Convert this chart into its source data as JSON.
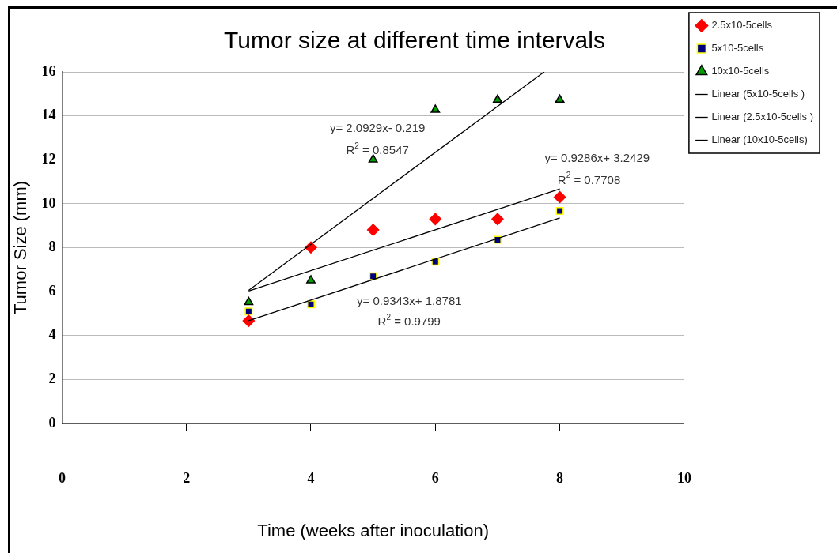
{
  "chart_data": {
    "type": "scatter",
    "title": "Tumor size at different time intervals",
    "xlabel": "Time (weeks after inoculation)",
    "ylabel": "Tumor Size (mm)",
    "xlim": [
      0,
      10
    ],
    "xticks": [
      0,
      2,
      4,
      6,
      8,
      10
    ],
    "ylim": [
      0,
      16
    ],
    "yticks": [
      0,
      2,
      4,
      6,
      8,
      10,
      12,
      14,
      16
    ],
    "grid": "y",
    "legend": "right",
    "series": [
      {
        "name": "2.5x10-5cells",
        "color": "#ff0000",
        "marker": "diamond",
        "x": [
          3,
          4,
          5,
          6,
          7,
          8
        ],
        "values": [
          4.67,
          8.01,
          8.81,
          9.3,
          9.3,
          10.3
        ]
      },
      {
        "name": "5x10-5cells",
        "color": "#000080",
        "marker": "square",
        "x": [
          3,
          4,
          5,
          6,
          7,
          8
        ],
        "values": [
          5.1,
          5.42,
          6.7,
          7.36,
          8.36,
          9.67
        ]
      },
      {
        "name": "10x10-5cells",
        "color": "#00a000",
        "marker": "triangle",
        "x": [
          3,
          4,
          5,
          6,
          7,
          8
        ],
        "values": [
          5.52,
          6.51,
          12.01,
          14.27,
          14.73,
          14.73
        ]
      },
      {
        "name": "Linear (5x10-5cells )",
        "type": "line",
        "color": "#000000",
        "marker": "none",
        "x": [
          3,
          8
        ],
        "values": [
          4.68,
          9.35
        ]
      },
      {
        "name": "Linear (2.5x10-5cells )",
        "type": "line",
        "color": "#000000",
        "marker": "none",
        "x": [
          3,
          8
        ],
        "values": [
          6.03,
          10.67
        ]
      },
      {
        "name": "Linear (10x10-5cells)",
        "type": "line",
        "color": "#000000",
        "marker": "none",
        "x": [
          3,
          7.75
        ],
        "values": [
          6.06,
          16
        ]
      }
    ],
    "annotations": [
      "y= 2.0929x- 0.219",
      "R$^{2}$ = 0.8547",
      "y= 0.9286x+ 3.2429",
      "R$^{2}$ = 0.7708",
      "y= 0.9343x+ 1.8781",
      "R$^{2}$ = 0.9799"
    ]
  }
}
